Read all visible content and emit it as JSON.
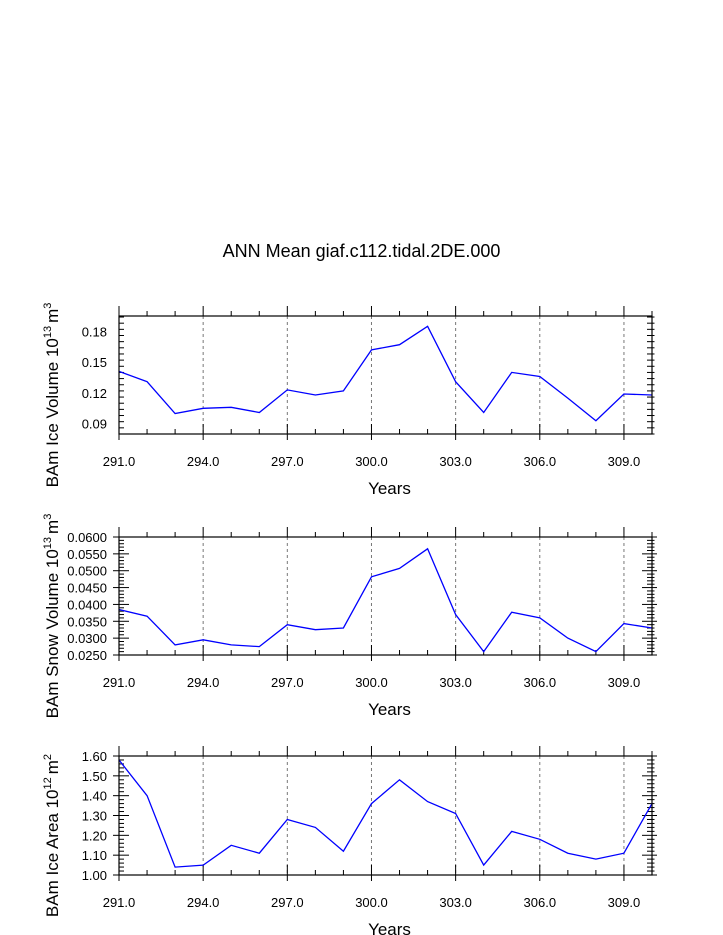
{
  "title": "ANN Mean giaf.c112.tidal.2DE.000",
  "chart_data": [
    {
      "type": "line",
      "xlabel": "Years",
      "ylabel_main": "BAm Ice Volume 10",
      "ylabel_exp": "13",
      "ylabel_unit": "m",
      "ylabel_unit_exp": "3",
      "xlim": [
        291,
        310
      ],
      "ylim": [
        0.08,
        0.195
      ],
      "xticks": [
        "291.0",
        "294.0",
        "297.0",
        "300.0",
        "303.0",
        "306.0",
        "309.0"
      ],
      "yticks": [
        "0.09",
        "0.12",
        "0.15",
        "0.18"
      ],
      "ytick_values": [
        0.09,
        0.12,
        0.15,
        0.18
      ],
      "grid": "dashed vertical at major x ticks",
      "x": [
        291,
        292,
        293,
        294,
        295,
        296,
        297,
        298,
        299,
        300,
        301,
        302,
        303,
        304,
        305,
        306,
        307,
        308,
        309,
        310
      ],
      "values": [
        0.141,
        0.131,
        0.1,
        0.105,
        0.106,
        0.101,
        0.123,
        0.118,
        0.122,
        0.162,
        0.167,
        0.185,
        0.131,
        0.101,
        0.14,
        0.136,
        0.115,
        0.093,
        0.119,
        0.118
      ],
      "color": "#0000ff"
    },
    {
      "type": "line",
      "xlabel": "Years",
      "ylabel_main": "BAm Snow Volume 10",
      "ylabel_exp": "13",
      "ylabel_unit": "m",
      "ylabel_unit_exp": "3",
      "xlim": [
        291,
        310
      ],
      "ylim": [
        0.025,
        0.06
      ],
      "xticks": [
        "291.0",
        "294.0",
        "297.0",
        "300.0",
        "303.0",
        "306.0",
        "309.0"
      ],
      "yticks": [
        "0.0250",
        "0.0300",
        "0.0350",
        "0.0400",
        "0.0450",
        "0.0500",
        "0.0550",
        "0.0600"
      ],
      "ytick_values": [
        0.025,
        0.03,
        0.035,
        0.04,
        0.045,
        0.05,
        0.055,
        0.06
      ],
      "grid": "dashed vertical at major x ticks",
      "x": [
        291,
        292,
        293,
        294,
        295,
        296,
        297,
        298,
        299,
        300,
        301,
        302,
        303,
        304,
        305,
        306,
        307,
        308,
        309,
        310
      ],
      "values": [
        0.0385,
        0.0365,
        0.028,
        0.0295,
        0.028,
        0.0275,
        0.034,
        0.0325,
        0.033,
        0.0482,
        0.0507,
        0.0565,
        0.037,
        0.026,
        0.0377,
        0.036,
        0.03,
        0.026,
        0.0343,
        0.033
      ],
      "color": "#0000ff"
    },
    {
      "type": "line",
      "xlabel": "Years",
      "ylabel_main": "BAm Ice Area 10",
      "ylabel_exp": "12",
      "ylabel_unit": "m",
      "ylabel_unit_exp": "2",
      "xlim": [
        291,
        310
      ],
      "ylim": [
        1.0,
        1.6
      ],
      "xticks": [
        "291.0",
        "294.0",
        "297.0",
        "300.0",
        "303.0",
        "306.0",
        "309.0"
      ],
      "yticks": [
        "1.00",
        "1.10",
        "1.20",
        "1.30",
        "1.40",
        "1.50",
        "1.60"
      ],
      "ytick_values": [
        1.0,
        1.1,
        1.2,
        1.3,
        1.4,
        1.5,
        1.6
      ],
      "grid": "dashed vertical at major x ticks",
      "x": [
        291,
        292,
        293,
        294,
        295,
        296,
        297,
        298,
        299,
        300,
        301,
        302,
        303,
        304,
        305,
        306,
        307,
        308,
        309,
        310
      ],
      "values": [
        1.58,
        1.4,
        1.04,
        1.05,
        1.15,
        1.11,
        1.28,
        1.24,
        1.12,
        1.36,
        1.48,
        1.37,
        1.31,
        1.05,
        1.22,
        1.18,
        1.11,
        1.08,
        1.11,
        1.36
      ],
      "color": "#0000ff"
    }
  ]
}
